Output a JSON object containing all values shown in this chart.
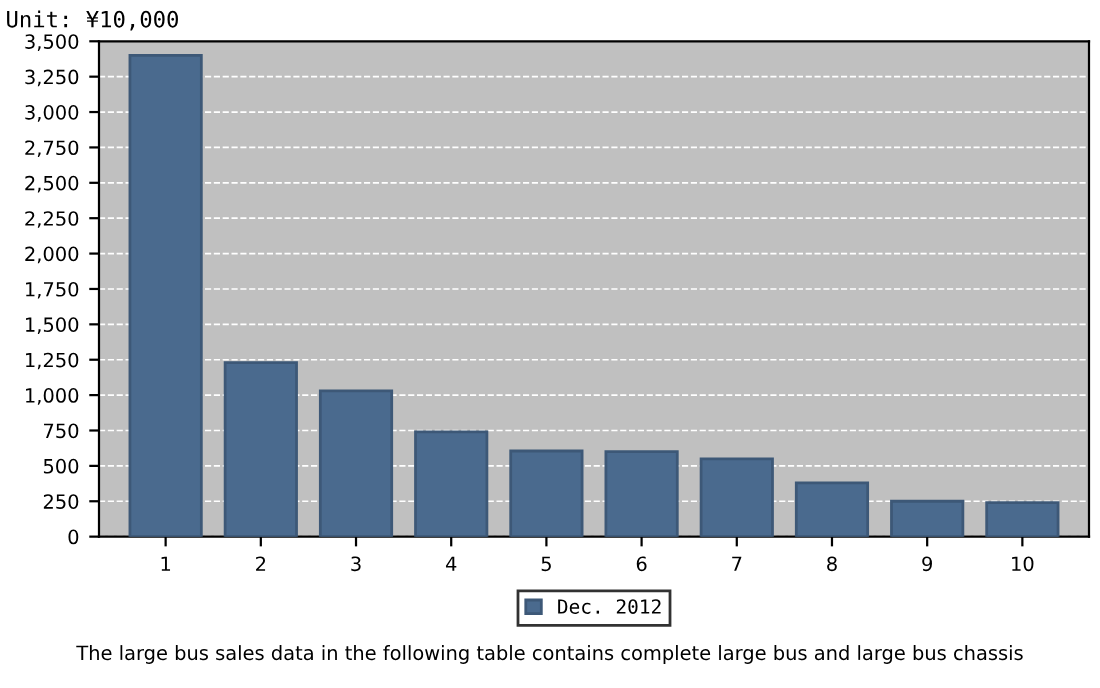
{
  "chart_data": {
    "type": "bar",
    "title": "Unit: ¥10,000",
    "categories": [
      "1",
      "2",
      "3",
      "4",
      "5",
      "6",
      "7",
      "8",
      "9",
      "10"
    ],
    "series": [
      {
        "name": "Dec. 2012",
        "color": "#4a6a8e",
        "values": [
          3400,
          1230,
          1030,
          740,
          605,
          600,
          550,
          380,
          250,
          240
        ]
      }
    ],
    "ylim": [
      0,
      3500
    ],
    "yticks": [
      {
        "value": 0,
        "label": "0"
      },
      {
        "value": 250,
        "label": "250"
      },
      {
        "value": 500,
        "label": "500"
      },
      {
        "value": 750,
        "label": "750"
      },
      {
        "value": 1000,
        "label": "1,000"
      },
      {
        "value": 1250,
        "label": "1,250"
      },
      {
        "value": 1500,
        "label": "1,500"
      },
      {
        "value": 1750,
        "label": "1,750"
      },
      {
        "value": 2000,
        "label": "2,000"
      },
      {
        "value": 2250,
        "label": "2,250"
      },
      {
        "value": 2500,
        "label": "2,500"
      },
      {
        "value": 2750,
        "label": "2,750"
      },
      {
        "value": 3000,
        "label": "3,000"
      },
      {
        "value": 3250,
        "label": "3,250"
      },
      {
        "value": 3500,
        "label": "3,500"
      }
    ],
    "grid": "y",
    "legend": "bottom",
    "annotations": [
      "The large bus sales data in the following table contains complete large bus and large bus chassis"
    ]
  }
}
